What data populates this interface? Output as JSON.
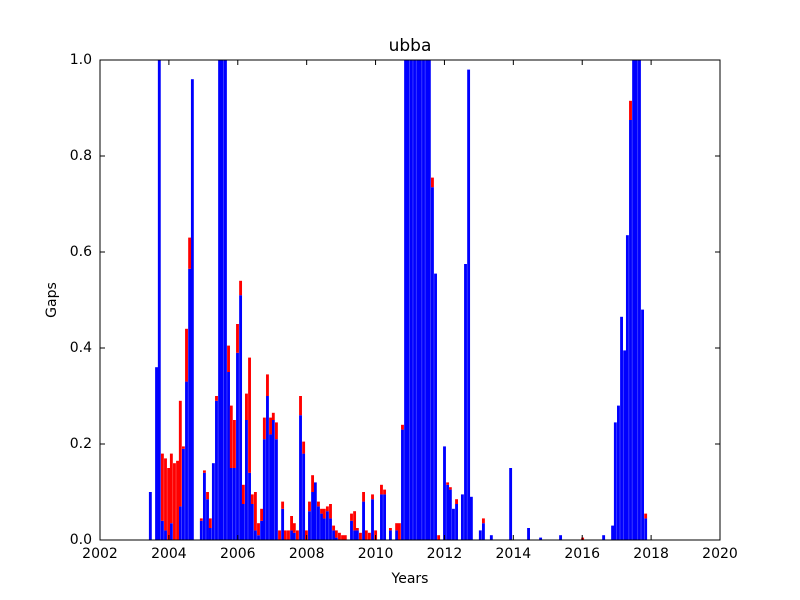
{
  "chart_data": {
    "type": "bar",
    "stacked": true,
    "title": "ubba",
    "xlabel": "Years",
    "ylabel": "Gaps",
    "x": [
      2003.42,
      2003.6,
      2003.68,
      2003.77,
      2003.86,
      2003.95,
      2004.03,
      2004.12,
      2004.21,
      2004.29,
      2004.38,
      2004.47,
      2004.56,
      2004.64,
      2004.9,
      2004.99,
      2005.08,
      2005.16,
      2005.25,
      2005.34,
      2005.43,
      2005.51,
      2005.6,
      2005.69,
      2005.77,
      2005.86,
      2005.95,
      2006.04,
      2006.12,
      2006.21,
      2006.3,
      2006.38,
      2006.47,
      2006.56,
      2006.65,
      2006.73,
      2006.82,
      2006.91,
      2006.99,
      2007.08,
      2007.17,
      2007.26,
      2007.34,
      2007.43,
      2007.52,
      2007.6,
      2007.69,
      2007.78,
      2007.87,
      2007.95,
      2008.04,
      2008.13,
      2008.21,
      2008.3,
      2008.39,
      2008.47,
      2008.56,
      2008.65,
      2008.74,
      2008.82,
      2008.91,
      2009.0,
      2009.08,
      2009.26,
      2009.35,
      2009.43,
      2009.52,
      2009.61,
      2009.69,
      2009.78,
      2009.87,
      2009.96,
      2010.13,
      2010.22,
      2010.39,
      2010.57,
      2010.65,
      2010.74,
      2010.83,
      2010.91,
      2011.0,
      2011.09,
      2011.18,
      2011.26,
      2011.35,
      2011.44,
      2011.52,
      2011.61,
      2011.7,
      2011.79,
      2011.96,
      2012.05,
      2012.13,
      2012.22,
      2012.31,
      2012.48,
      2012.57,
      2012.66,
      2012.74,
      2013.0,
      2013.09,
      2013.32,
      2013.88,
      2014.4,
      2014.75,
      2015.33,
      2015.97,
      2016.58,
      2016.84,
      2016.92,
      2017.01,
      2017.1,
      2017.19,
      2017.27,
      2017.36,
      2017.45,
      2017.53,
      2017.62,
      2017.71,
      2017.8
    ],
    "series": [
      {
        "color": "#0000ff",
        "values": [
          0.1,
          0.36,
          1,
          0.04,
          0.02,
          0,
          0.035,
          0,
          0,
          0.07,
          0.19,
          0.33,
          0.565,
          0.96,
          0.04,
          0.14,
          0.085,
          0.025,
          0.16,
          0.29,
          1,
          1,
          1,
          0.35,
          0.15,
          0.15,
          0.39,
          0.51,
          0.075,
          0.25,
          0.14,
          0.075,
          0.02,
          0.01,
          0.04,
          0.21,
          0.3,
          0.22,
          0.25,
          0.21,
          0,
          0.065,
          0,
          0,
          0.02,
          0.015,
          0,
          0.26,
          0.18,
          0,
          0.06,
          0.1,
          0.12,
          0.07,
          0.055,
          0.045,
          0.06,
          0.045,
          0.02,
          0.005,
          0,
          0,
          0,
          0.04,
          0.02,
          0.02,
          0,
          0.08,
          0,
          0,
          0.085,
          0,
          0.095,
          0.095,
          0.02,
          0.02,
          0,
          0.23,
          1,
          1,
          1,
          1,
          1,
          1,
          1,
          1,
          1,
          0.735,
          0.555,
          0,
          0.195,
          0.115,
          0.105,
          0.065,
          0.075,
          0.095,
          0.575,
          0.98,
          0.09,
          0.02,
          0.035,
          0.01,
          0.15,
          0.025,
          0.005,
          0.01,
          0,
          0.01,
          0.03,
          0.245,
          0.28,
          0.465,
          0.395,
          0.635,
          0.875,
          1,
          1,
          1,
          0.48,
          0.045
        ]
      },
      {
        "color": "#ff0000",
        "values": [
          0,
          0,
          0,
          0.14,
          0.15,
          0.15,
          0.145,
          0.16,
          0.165,
          0.22,
          0.005,
          0.11,
          0.065,
          0,
          0.005,
          0.005,
          0.015,
          0.02,
          0,
          0.01,
          0,
          0,
          0,
          0.055,
          0.13,
          0.1,
          0.06,
          0.03,
          0.04,
          0.055,
          0.24,
          0.02,
          0.08,
          0.025,
          0.025,
          0.045,
          0.045,
          0.035,
          0.015,
          0.035,
          0.02,
          0.015,
          0.02,
          0.02,
          0.03,
          0.02,
          0.02,
          0.04,
          0.025,
          0.02,
          0.02,
          0.035,
          0,
          0.01,
          0.01,
          0.02,
          0.01,
          0.03,
          0.01,
          0.015,
          0.015,
          0.01,
          0.01,
          0.015,
          0.04,
          0.005,
          0.015,
          0.02,
          0.02,
          0.015,
          0.01,
          0.02,
          0.02,
          0.01,
          0.005,
          0.015,
          0.035,
          0.01,
          0,
          0,
          0,
          0,
          0,
          0,
          0,
          0,
          0,
          0.02,
          0,
          0.01,
          0,
          0.005,
          0.005,
          0,
          0.01,
          0,
          0,
          0,
          0,
          0,
          0.01,
          0,
          0,
          0,
          0,
          0,
          0.005,
          0,
          0,
          0,
          0,
          0,
          0,
          0,
          0.04,
          0,
          0,
          0,
          0,
          0.01
        ]
      }
    ],
    "xlim": [
      2002,
      2020
    ],
    "xticks": [
      2002,
      2004,
      2006,
      2008,
      2010,
      2012,
      2014,
      2016,
      2018,
      2020
    ],
    "ylim": [
      0,
      1
    ],
    "yticks": [
      {
        "value": 0,
        "label": "0.0"
      },
      {
        "value": 0.2,
        "label": "0.2"
      },
      {
        "value": 0.4,
        "label": "0.4"
      },
      {
        "value": 0.6,
        "label": "0.6"
      },
      {
        "value": 0.8,
        "label": "0.8"
      },
      {
        "value": 1,
        "label": "1.0"
      }
    ],
    "grid": false
  }
}
